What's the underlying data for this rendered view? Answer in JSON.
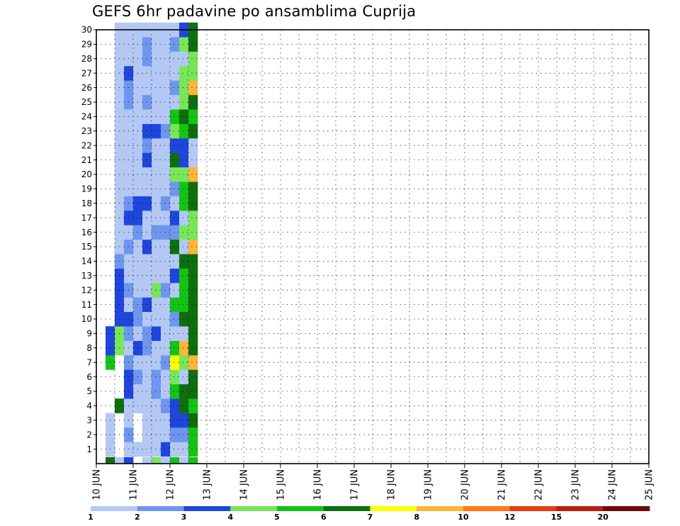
{
  "chart_data": {
    "type": "heatmap",
    "title": "GEFS 6hr padavine po ansamblima Cuprija",
    "y_members": [
      1,
      2,
      3,
      4,
      5,
      6,
      7,
      8,
      9,
      10,
      11,
      12,
      13,
      14,
      15,
      16,
      17,
      18,
      19,
      20,
      21,
      22,
      23,
      24,
      25,
      26,
      27,
      28,
      29,
      30
    ],
    "x_tick_labels": [
      "10 JUN",
      "11 JUN",
      "12 JUN",
      "13 JUN",
      "14 JUN",
      "15 JUN",
      "16 JUN",
      "17 JUN",
      "18 JUN",
      "19 JUN",
      "20 JUN",
      "21 JUN",
      "22 JUN",
      "23 JUN",
      "24 JUN",
      "25 JUN"
    ],
    "x_range_days": [
      0,
      15
    ],
    "time_step_hours": 6,
    "grid": "dotted",
    "levels": [
      "1",
      "2",
      "3",
      "4",
      "5",
      "6",
      "7",
      "8",
      "10",
      "12",
      "15",
      "20"
    ],
    "colors": [
      "#b4c8f5",
      "#6e96ee",
      "#1e46dc",
      "#78e65a",
      "#14c314",
      "#0f6e0f",
      "#ffff00",
      "#ffb43c",
      "#ff7814",
      "#e63c14",
      "#b41e14",
      "#6e0a0a"
    ],
    "cells": [
      [
        1,
        0,
        6
      ],
      [
        1,
        1,
        1
      ],
      [
        1,
        2,
        1
      ],
      [
        1,
        3,
        1
      ],
      [
        1,
        7,
        5
      ],
      [
        1,
        8,
        3
      ],
      [
        1,
        9,
        3
      ],
      [
        2,
        0,
        1
      ],
      [
        2,
        4,
        6
      ],
      [
        2,
        8,
        4
      ],
      [
        2,
        9,
        4
      ],
      [
        2,
        10,
        3
      ],
      [
        2,
        11,
        3
      ],
      [
        2,
        12,
        3
      ],
      [
        2,
        13,
        3
      ],
      [
        2,
        14,
        2
      ],
      [
        2,
        15,
        1
      ],
      [
        2,
        16,
        1
      ],
      [
        2,
        17,
        1
      ],
      [
        2,
        18,
        1
      ],
      [
        2,
        19,
        1
      ],
      [
        2,
        20,
        1
      ],
      [
        2,
        21,
        1
      ],
      [
        2,
        22,
        1
      ],
      [
        2,
        23,
        1
      ],
      [
        2,
        24,
        1
      ],
      [
        2,
        25,
        1
      ],
      [
        2,
        26,
        1
      ],
      [
        2,
        27,
        1
      ],
      [
        2,
        28,
        1
      ],
      [
        2,
        29,
        1
      ],
      [
        2,
        30,
        1
      ],
      [
        3,
        0,
        3
      ],
      [
        3,
        1,
        1
      ],
      [
        3,
        2,
        2
      ],
      [
        3,
        3,
        1
      ],
      [
        3,
        4,
        1
      ],
      [
        3,
        5,
        3
      ],
      [
        3,
        6,
        3
      ],
      [
        3,
        7,
        2
      ],
      [
        3,
        8,
        1
      ],
      [
        3,
        9,
        2
      ],
      [
        3,
        10,
        3
      ],
      [
        3,
        11,
        1
      ],
      [
        3,
        12,
        2
      ],
      [
        3,
        13,
        1
      ],
      [
        3,
        14,
        1
      ],
      [
        3,
        15,
        2
      ],
      [
        3,
        16,
        1
      ],
      [
        3,
        17,
        3
      ],
      [
        3,
        18,
        2
      ],
      [
        3,
        19,
        1
      ],
      [
        3,
        20,
        1
      ],
      [
        3,
        21,
        1
      ],
      [
        3,
        22,
        1
      ],
      [
        3,
        23,
        1
      ],
      [
        3,
        24,
        1
      ],
      [
        3,
        25,
        2
      ],
      [
        3,
        26,
        2
      ],
      [
        3,
        27,
        3
      ],
      [
        3,
        28,
        1
      ],
      [
        3,
        29,
        1
      ],
      [
        3,
        30,
        1
      ],
      [
        4,
        1,
        1
      ],
      [
        4,
        4,
        1
      ],
      [
        4,
        5,
        1
      ],
      [
        4,
        6,
        2
      ],
      [
        4,
        7,
        1
      ],
      [
        4,
        8,
        3
      ],
      [
        4,
        9,
        1
      ],
      [
        4,
        10,
        2
      ],
      [
        4,
        11,
        2
      ],
      [
        4,
        12,
        1
      ],
      [
        4,
        13,
        1
      ],
      [
        4,
        14,
        1
      ],
      [
        4,
        15,
        1
      ],
      [
        4,
        16,
        2
      ],
      [
        4,
        17,
        3
      ],
      [
        4,
        18,
        3
      ],
      [
        4,
        19,
        1
      ],
      [
        4,
        20,
        1
      ],
      [
        4,
        21,
        1
      ],
      [
        4,
        22,
        1
      ],
      [
        4,
        23,
        1
      ],
      [
        4,
        24,
        1
      ],
      [
        4,
        25,
        1
      ],
      [
        4,
        26,
        1
      ],
      [
        4,
        27,
        1
      ],
      [
        4,
        28,
        1
      ],
      [
        4,
        29,
        1
      ],
      [
        4,
        30,
        1
      ],
      [
        5,
        0,
        1
      ],
      [
        5,
        1,
        1
      ],
      [
        5,
        2,
        1
      ],
      [
        5,
        3,
        1
      ],
      [
        5,
        4,
        1
      ],
      [
        5,
        5,
        1
      ],
      [
        5,
        6,
        1
      ],
      [
        5,
        7,
        1
      ],
      [
        5,
        8,
        2
      ],
      [
        5,
        9,
        2
      ],
      [
        5,
        10,
        1
      ],
      [
        5,
        11,
        3
      ],
      [
        5,
        12,
        1
      ],
      [
        5,
        13,
        1
      ],
      [
        5,
        14,
        1
      ],
      [
        5,
        15,
        3
      ],
      [
        5,
        16,
        1
      ],
      [
        5,
        17,
        1
      ],
      [
        5,
        18,
        3
      ],
      [
        5,
        19,
        1
      ],
      [
        5,
        20,
        1
      ],
      [
        5,
        21,
        3
      ],
      [
        5,
        22,
        2
      ],
      [
        5,
        23,
        3
      ],
      [
        5,
        24,
        1
      ],
      [
        5,
        25,
        2
      ],
      [
        5,
        26,
        1
      ],
      [
        5,
        27,
        1
      ],
      [
        5,
        28,
        2
      ],
      [
        5,
        29,
        2
      ],
      [
        5,
        30,
        1
      ],
      [
        6,
        0,
        4
      ],
      [
        6,
        1,
        1
      ],
      [
        6,
        2,
        1
      ],
      [
        6,
        3,
        1
      ],
      [
        6,
        4,
        1
      ],
      [
        6,
        5,
        2
      ],
      [
        6,
        6,
        2
      ],
      [
        6,
        7,
        1
      ],
      [
        6,
        8,
        1
      ],
      [
        6,
        9,
        3
      ],
      [
        6,
        10,
        1
      ],
      [
        6,
        11,
        1
      ],
      [
        6,
        12,
        4
      ],
      [
        6,
        13,
        1
      ],
      [
        6,
        14,
        1
      ],
      [
        6,
        15,
        1
      ],
      [
        6,
        16,
        2
      ],
      [
        6,
        17,
        1
      ],
      [
        6,
        18,
        1
      ],
      [
        6,
        19,
        1
      ],
      [
        6,
        20,
        1
      ],
      [
        6,
        21,
        1
      ],
      [
        6,
        22,
        1
      ],
      [
        6,
        23,
        3
      ],
      [
        6,
        24,
        1
      ],
      [
        6,
        25,
        1
      ],
      [
        6,
        26,
        1
      ],
      [
        6,
        27,
        1
      ],
      [
        6,
        28,
        1
      ],
      [
        6,
        29,
        1
      ],
      [
        6,
        30,
        1
      ],
      [
        7,
        0,
        1
      ],
      [
        7,
        1,
        3
      ],
      [
        7,
        2,
        1
      ],
      [
        7,
        3,
        1
      ],
      [
        7,
        4,
        2
      ],
      [
        7,
        5,
        1
      ],
      [
        7,
        6,
        1
      ],
      [
        7,
        7,
        2
      ],
      [
        7,
        8,
        1
      ],
      [
        7,
        9,
        1
      ],
      [
        7,
        10,
        1
      ],
      [
        7,
        11,
        1
      ],
      [
        7,
        12,
        2
      ],
      [
        7,
        13,
        1
      ],
      [
        7,
        14,
        1
      ],
      [
        7,
        15,
        1
      ],
      [
        7,
        16,
        2
      ],
      [
        7,
        17,
        1
      ],
      [
        7,
        18,
        2
      ],
      [
        7,
        19,
        1
      ],
      [
        7,
        20,
        1
      ],
      [
        7,
        21,
        1
      ],
      [
        7,
        22,
        1
      ],
      [
        7,
        23,
        2
      ],
      [
        7,
        24,
        1
      ],
      [
        7,
        25,
        1
      ],
      [
        7,
        26,
        1
      ],
      [
        7,
        27,
        1
      ],
      [
        7,
        28,
        1
      ],
      [
        7,
        29,
        1
      ],
      [
        7,
        30,
        1
      ],
      [
        8,
        0,
        5
      ],
      [
        8,
        1,
        1
      ],
      [
        8,
        2,
        2
      ],
      [
        8,
        3,
        3
      ],
      [
        8,
        4,
        3
      ],
      [
        8,
        5,
        5
      ],
      [
        8,
        6,
        4
      ],
      [
        8,
        7,
        7
      ],
      [
        8,
        8,
        5
      ],
      [
        8,
        9,
        1
      ],
      [
        8,
        10,
        2
      ],
      [
        8,
        11,
        5
      ],
      [
        8,
        12,
        1
      ],
      [
        8,
        13,
        3
      ],
      [
        8,
        14,
        1
      ],
      [
        8,
        15,
        6
      ],
      [
        8,
        16,
        2
      ],
      [
        8,
        17,
        3
      ],
      [
        8,
        18,
        1
      ],
      [
        8,
        19,
        2
      ],
      [
        8,
        20,
        4
      ],
      [
        8,
        21,
        6
      ],
      [
        8,
        22,
        3
      ],
      [
        8,
        23,
        4
      ],
      [
        8,
        24,
        5
      ],
      [
        8,
        25,
        1
      ],
      [
        8,
        26,
        2
      ],
      [
        8,
        27,
        1
      ],
      [
        8,
        28,
        1
      ],
      [
        8,
        29,
        2
      ],
      [
        8,
        30,
        1
      ],
      [
        9,
        0,
        1
      ],
      [
        9,
        1,
        1
      ],
      [
        9,
        2,
        2
      ],
      [
        9,
        3,
        3
      ],
      [
        9,
        4,
        6
      ],
      [
        9,
        5,
        6
      ],
      [
        9,
        6,
        1
      ],
      [
        9,
        7,
        4
      ],
      [
        9,
        8,
        8
      ],
      [
        9,
        9,
        1
      ],
      [
        9,
        10,
        6
      ],
      [
        9,
        11,
        5
      ],
      [
        9,
        12,
        5
      ],
      [
        9,
        13,
        5
      ],
      [
        9,
        14,
        6
      ],
      [
        9,
        15,
        1
      ],
      [
        9,
        16,
        4
      ],
      [
        9,
        17,
        1
      ],
      [
        9,
        18,
        5
      ],
      [
        9,
        19,
        5
      ],
      [
        9,
        20,
        4
      ],
      [
        9,
        21,
        3
      ],
      [
        9,
        22,
        3
      ],
      [
        9,
        23,
        5
      ],
      [
        9,
        24,
        6
      ],
      [
        9,
        25,
        4
      ],
      [
        9,
        26,
        4
      ],
      [
        9,
        27,
        4
      ],
      [
        9,
        28,
        1
      ],
      [
        9,
        29,
        4
      ],
      [
        9,
        30,
        3
      ],
      [
        10,
        0,
        5
      ],
      [
        10,
        1,
        5
      ],
      [
        10,
        2,
        5
      ],
      [
        10,
        3,
        6
      ],
      [
        10,
        4,
        5
      ],
      [
        10,
        5,
        6
      ],
      [
        10,
        6,
        6
      ],
      [
        10,
        7,
        8
      ],
      [
        10,
        8,
        6
      ],
      [
        10,
        9,
        6
      ],
      [
        10,
        10,
        6
      ],
      [
        10,
        11,
        6
      ],
      [
        10,
        12,
        6
      ],
      [
        10,
        13,
        6
      ],
      [
        10,
        14,
        6
      ],
      [
        10,
        15,
        8
      ],
      [
        10,
        16,
        4
      ],
      [
        10,
        17,
        4
      ],
      [
        10,
        18,
        6
      ],
      [
        10,
        19,
        6
      ],
      [
        10,
        20,
        8
      ],
      [
        10,
        21,
        1
      ],
      [
        10,
        22,
        1
      ],
      [
        10,
        23,
        6
      ],
      [
        10,
        24,
        5
      ],
      [
        10,
        25,
        6
      ],
      [
        10,
        26,
        8
      ],
      [
        10,
        27,
        4
      ],
      [
        10,
        28,
        4
      ],
      [
        10,
        29,
        6
      ],
      [
        10,
        30,
        6
      ]
    ]
  },
  "colorbar": {
    "labels": [
      "1",
      "2",
      "3",
      "4",
      "5",
      "6",
      "7",
      "8",
      "10",
      "12",
      "15",
      "20"
    ]
  }
}
